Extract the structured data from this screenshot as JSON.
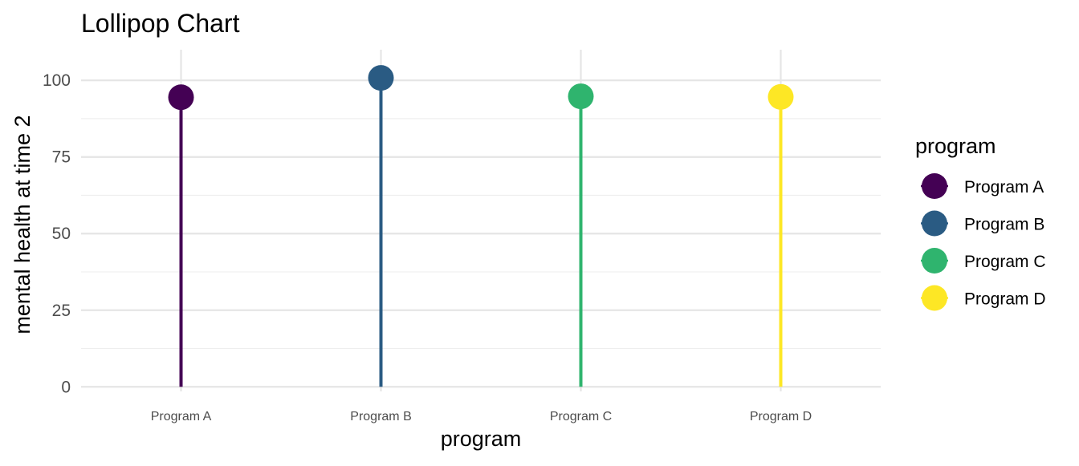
{
  "chart_data": {
    "type": "lollipop",
    "title": "Lollipop Chart",
    "xlabel": "program",
    "ylabel": "mental health at time 2",
    "categories": [
      "Program A",
      "Program B",
      "Program C",
      "Program D"
    ],
    "values": [
      94.5,
      100.8,
      94.8,
      94.6
    ],
    "colors": [
      "#440154",
      "#2a5b83",
      "#2fb46e",
      "#fde725"
    ],
    "ylim": [
      -1.5,
      110
    ],
    "yticks": [
      0,
      25,
      50,
      75,
      100
    ],
    "grid": true,
    "legend": {
      "title": "program",
      "position": "right",
      "entries": [
        "Program A",
        "Program B",
        "Program C",
        "Program D"
      ]
    }
  }
}
